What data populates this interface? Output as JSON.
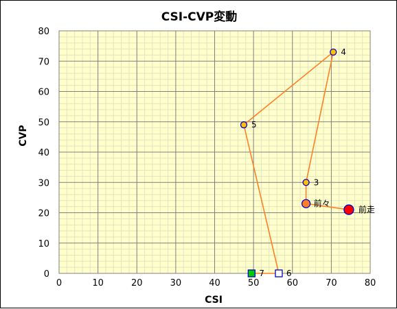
{
  "chart_data": {
    "type": "scatter",
    "title": "CSI-CVP変動",
    "xlabel": "CSI",
    "ylabel": "CVP",
    "xlim": [
      0,
      80
    ],
    "ylim": [
      0,
      80
    ],
    "x_ticks": [
      "0",
      "10",
      "20",
      "30",
      "40",
      "50",
      "60",
      "70",
      "80"
    ],
    "y_ticks": [
      "0",
      "10",
      "20",
      "30",
      "40",
      "50",
      "60",
      "70",
      "80"
    ],
    "grid": true,
    "line_color": "#ff7f27",
    "plot_background": "#ffffcc",
    "points": [
      {
        "label": "7",
        "x": 49.5,
        "y": 0,
        "marker": "square",
        "color": "#00cc00"
      },
      {
        "label": "6",
        "x": 56.5,
        "y": 0,
        "marker": "square",
        "color": "#ffffff"
      },
      {
        "label": "5",
        "x": 47.5,
        "y": 49,
        "marker": "circle",
        "color": "#ffc000"
      },
      {
        "label": "4",
        "x": 70.5,
        "y": 73,
        "marker": "circle",
        "color": "#ffc000"
      },
      {
        "label": "3",
        "x": 63.5,
        "y": 30,
        "marker": "circle",
        "color": "#ffc000"
      },
      {
        "label": "前々",
        "x": 63.5,
        "y": 23,
        "marker": "circle",
        "color": "#ff7f27"
      },
      {
        "label": "前走",
        "x": 74.5,
        "y": 21,
        "marker": "circle",
        "color": "#ff0000"
      }
    ]
  }
}
